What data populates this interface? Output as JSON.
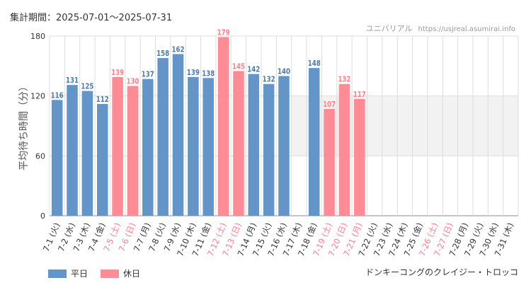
{
  "header": {
    "period_label": "集計期間：2025-07-01～2025-07-31",
    "brand": "ユニバリアル",
    "url": "https://usjreal.asumirai.info"
  },
  "footer": {
    "attraction": "ドンキーコングのクレイジー・トロッコ"
  },
  "legend": {
    "weekday": "平日",
    "holiday": "休日"
  },
  "colors": {
    "weekday": "#6495c8",
    "holiday": "#ff8c94",
    "weekday_text": "#4a79b0",
    "holiday_text": "#ff7f88",
    "grid": "#dddddd",
    "band": "#f2f2f2"
  },
  "chart_data": {
    "type": "bar",
    "ylabel": "平均待ち時間（分）",
    "ylim": [
      0,
      180
    ],
    "yticks": [
      0,
      60,
      120,
      180
    ],
    "highlight_band": [
      60,
      120
    ],
    "highlight_band_start_category": "7-17",
    "categories": [
      "7-1",
      "7-2",
      "7-3",
      "7-4",
      "7-5",
      "7-6",
      "7-7",
      "7-8",
      "7-9",
      "7-10",
      "7-11",
      "7-12",
      "7-13",
      "7-14",
      "7-15",
      "7-16",
      "7-17",
      "7-18",
      "7-19",
      "7-20",
      "7-21",
      "7-22",
      "7-23",
      "7-24",
      "7-25",
      "7-26",
      "7-27",
      "7-28",
      "7-29",
      "7-30",
      "7-31"
    ],
    "weekdays": [
      "火",
      "水",
      "木",
      "金",
      "土",
      "日",
      "月",
      "火",
      "水",
      "木",
      "金",
      "土",
      "日",
      "月",
      "火",
      "水",
      "木",
      "金",
      "土",
      "日",
      "月",
      "火",
      "水",
      "木",
      "金",
      "土",
      "日",
      "月",
      "火",
      "水",
      "木"
    ],
    "holiday": [
      false,
      false,
      false,
      false,
      true,
      true,
      false,
      false,
      false,
      false,
      false,
      true,
      true,
      false,
      false,
      false,
      false,
      false,
      true,
      true,
      true,
      false,
      false,
      false,
      false,
      true,
      true,
      false,
      false,
      false,
      false
    ],
    "values": [
      116,
      131,
      125,
      112,
      139,
      130,
      137,
      158,
      162,
      139,
      138,
      179,
      145,
      142,
      132,
      140,
      null,
      148,
      107,
      132,
      117,
      null,
      null,
      null,
      null,
      null,
      null,
      null,
      null,
      null,
      null
    ],
    "series": [
      {
        "name": "平日"
      },
      {
        "name": "休日"
      }
    ]
  }
}
